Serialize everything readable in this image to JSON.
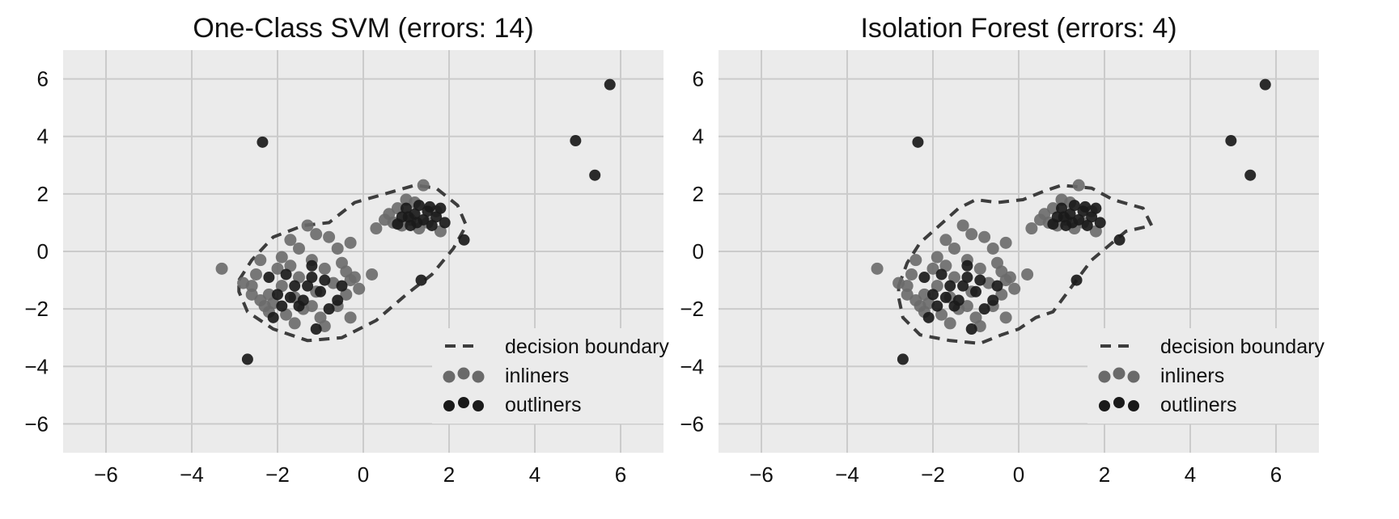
{
  "chart_data": [
    {
      "type": "scatter",
      "title": "One-Class SVM (errors: 14)",
      "xlabel": "",
      "ylabel": "",
      "xlim": [
        -7,
        7
      ],
      "ylim": [
        -7,
        7
      ],
      "x_ticks": [
        -6,
        -4,
        -2,
        0,
        2,
        4,
        6
      ],
      "y_ticks": [
        -6,
        -4,
        -2,
        0,
        2,
        4,
        6
      ],
      "x_tick_labels": [
        "−6",
        "−4",
        "−2",
        "0",
        "2",
        "4",
        "6"
      ],
      "y_tick_labels": [
        "−6",
        "−4",
        "−2",
        "0",
        "2",
        "4",
        "6"
      ],
      "grid": true,
      "legend_position": "lower-right",
      "legend": [
        "decision boundary",
        "inliners",
        "outliners"
      ],
      "colors": {
        "background": "#ebebeb",
        "grid": "#cbcbcb",
        "inliers": "#6a6a6a",
        "outliers": "#1a1a1a",
        "boundary": "#3d3d3d"
      },
      "series": [
        {
          "name": "inliners",
          "points": [
            [
              -3.3,
              -0.6
            ],
            [
              -2.6,
              -1.2
            ],
            [
              -2.4,
              -1.7
            ],
            [
              -2.5,
              -0.8
            ],
            [
              -2.2,
              -1.5
            ],
            [
              -2.0,
              -0.6
            ],
            [
              -1.9,
              -1.2
            ],
            [
              -1.8,
              -2.2
            ],
            [
              -1.7,
              -0.5
            ],
            [
              -1.6,
              -1.6
            ],
            [
              -1.5,
              -0.9
            ],
            [
              -1.4,
              -2.0
            ],
            [
              -1.3,
              0.9
            ],
            [
              -1.2,
              -0.3
            ],
            [
              -1.1,
              -1.4
            ],
            [
              -1.0,
              -2.3
            ],
            [
              -0.9,
              -0.6
            ],
            [
              -0.8,
              0.5
            ],
            [
              -0.7,
              -1.1
            ],
            [
              -0.6,
              -1.9
            ],
            [
              -0.5,
              -0.4
            ],
            [
              -0.4,
              -1.5
            ],
            [
              -0.3,
              -2.3
            ],
            [
              -0.2,
              -0.9
            ],
            [
              -0.1,
              -1.3
            ],
            [
              -0.3,
              0.3
            ],
            [
              -1.7,
              0.4
            ],
            [
              -2.2,
              -2.1
            ],
            [
              -1.9,
              -0.2
            ],
            [
              -1.5,
              0.1
            ],
            [
              -2.1,
              -1.8
            ],
            [
              -1.6,
              -2.5
            ],
            [
              -0.9,
              -2.6
            ],
            [
              -2.4,
              -0.3
            ],
            [
              -2.8,
              -1.1
            ],
            [
              -2.6,
              -1.5
            ],
            [
              0.3,
              0.8
            ],
            [
              0.6,
              1.3
            ],
            [
              0.8,
              1.5
            ],
            [
              1.0,
              1.8
            ],
            [
              1.1,
              1.1
            ],
            [
              1.2,
              1.7
            ],
            [
              1.4,
              2.3
            ],
            [
              1.5,
              1.0
            ],
            [
              0.9,
              0.9
            ],
            [
              1.7,
              1.4
            ],
            [
              0.7,
              1.0
            ],
            [
              1.3,
              0.8
            ],
            [
              0.5,
              1.1
            ],
            [
              1.8,
              0.7
            ],
            [
              0.2,
              -0.8
            ],
            [
              -0.6,
              0.1
            ],
            [
              -1.1,
              0.6
            ],
            [
              -2.3,
              -1.9
            ],
            [
              -1.2,
              -1.9
            ],
            [
              -0.4,
              -0.7
            ],
            [
              -0.3,
              -1.0
            ]
          ]
        },
        {
          "name": "outliners",
          "points": [
            [
              -2.35,
              3.8
            ],
            [
              -2.7,
              -3.75
            ],
            [
              4.95,
              3.85
            ],
            [
              5.4,
              2.65
            ],
            [
              5.75,
              5.8
            ],
            [
              2.35,
              0.4
            ],
            [
              1.35,
              -1.0
            ],
            [
              0.9,
              1.2
            ],
            [
              1.0,
              1.5
            ],
            [
              1.1,
              0.9
            ],
            [
              1.2,
              1.3
            ],
            [
              1.3,
              1.6
            ],
            [
              1.4,
              1.1
            ],
            [
              1.5,
              1.4
            ],
            [
              1.6,
              0.9
            ],
            [
              1.7,
              1.2
            ],
            [
              1.8,
              1.5
            ],
            [
              1.9,
              1.0
            ],
            [
              1.25,
              1.0
            ],
            [
              1.05,
              1.2
            ],
            [
              0.8,
              0.95
            ],
            [
              1.55,
              1.55
            ],
            [
              -2.0,
              -1.5
            ],
            [
              -1.8,
              -0.8
            ],
            [
              -1.6,
              -1.2
            ],
            [
              -1.4,
              -1.7
            ],
            [
              -1.2,
              -0.9
            ],
            [
              -1.0,
              -1.4
            ],
            [
              -0.8,
              -2.0
            ],
            [
              -0.6,
              -1.7
            ],
            [
              -1.1,
              -2.7
            ],
            [
              -1.3,
              -1.2
            ],
            [
              -2.2,
              -0.9
            ],
            [
              -1.5,
              -1.9
            ],
            [
              -0.9,
              -1.0
            ],
            [
              -1.7,
              -1.6
            ],
            [
              -1.9,
              -1.9
            ],
            [
              -1.2,
              -0.5
            ],
            [
              -0.5,
              -1.2
            ],
            [
              -2.1,
              -2.3
            ]
          ]
        }
      ],
      "boundary_points": [
        [
          -2.9,
          -1.0
        ],
        [
          -2.6,
          -0.3
        ],
        [
          -2.1,
          0.5
        ],
        [
          -1.4,
          0.9
        ],
        [
          -0.8,
          1.0
        ],
        [
          -0.2,
          1.7
        ],
        [
          0.5,
          2.0
        ],
        [
          1.2,
          2.3
        ],
        [
          1.7,
          2.2
        ],
        [
          2.2,
          1.6
        ],
        [
          2.4,
          0.9
        ],
        [
          2.1,
          0.1
        ],
        [
          1.6,
          -0.8
        ],
        [
          1.0,
          -1.5
        ],
        [
          0.3,
          -2.4
        ],
        [
          -0.5,
          -3.0
        ],
        [
          -1.3,
          -3.1
        ],
        [
          -2.1,
          -2.7
        ],
        [
          -2.7,
          -2.1
        ],
        [
          -2.9,
          -1.4
        ]
      ]
    },
    {
      "type": "scatter",
      "title": "Isolation Forest (errors: 4)",
      "xlabel": "",
      "ylabel": "",
      "xlim": [
        -7,
        7
      ],
      "ylim": [
        -7,
        7
      ],
      "x_ticks": [
        -6,
        -4,
        -2,
        0,
        2,
        4,
        6
      ],
      "y_ticks": [
        -6,
        -4,
        -2,
        0,
        2,
        4,
        6
      ],
      "x_tick_labels": [
        "−6",
        "−4",
        "−2",
        "0",
        "2",
        "4",
        "6"
      ],
      "y_tick_labels": [
        "−6",
        "−4",
        "−2",
        "0",
        "2",
        "4",
        "6"
      ],
      "grid": true,
      "legend_position": "lower-right",
      "legend": [
        "decision boundary",
        "inliners",
        "outliners"
      ],
      "colors": {
        "background": "#ebebeb",
        "grid": "#cbcbcb",
        "inliers": "#6a6a6a",
        "outliers": "#1a1a1a",
        "boundary": "#3d3d3d"
      },
      "series": [
        {
          "name": "inliners",
          "points": [
            [
              -3.3,
              -0.6
            ],
            [
              -2.6,
              -1.2
            ],
            [
              -2.4,
              -1.7
            ],
            [
              -2.5,
              -0.8
            ],
            [
              -2.2,
              -1.5
            ],
            [
              -2.0,
              -0.6
            ],
            [
              -1.9,
              -1.2
            ],
            [
              -1.8,
              -2.2
            ],
            [
              -1.7,
              -0.5
            ],
            [
              -1.6,
              -1.6
            ],
            [
              -1.5,
              -0.9
            ],
            [
              -1.4,
              -2.0
            ],
            [
              -1.3,
              0.9
            ],
            [
              -1.2,
              -0.3
            ],
            [
              -1.1,
              -1.4
            ],
            [
              -1.0,
              -2.3
            ],
            [
              -0.9,
              -0.6
            ],
            [
              -0.8,
              0.5
            ],
            [
              -0.7,
              -1.1
            ],
            [
              -0.6,
              -1.9
            ],
            [
              -0.5,
              -0.4
            ],
            [
              -0.4,
              -1.5
            ],
            [
              -0.3,
              -2.3
            ],
            [
              -0.2,
              -0.9
            ],
            [
              -0.1,
              -1.3
            ],
            [
              -0.3,
              0.3
            ],
            [
              -1.7,
              0.4
            ],
            [
              -2.2,
              -2.1
            ],
            [
              -1.9,
              -0.2
            ],
            [
              -1.5,
              0.1
            ],
            [
              -2.1,
              -1.8
            ],
            [
              -1.6,
              -2.5
            ],
            [
              -0.9,
              -2.6
            ],
            [
              -2.4,
              -0.3
            ],
            [
              -2.8,
              -1.1
            ],
            [
              -2.6,
              -1.5
            ],
            [
              0.3,
              0.8
            ],
            [
              0.6,
              1.3
            ],
            [
              0.8,
              1.5
            ],
            [
              1.0,
              1.8
            ],
            [
              1.1,
              1.1
            ],
            [
              1.2,
              1.7
            ],
            [
              1.4,
              2.3
            ],
            [
              1.5,
              1.0
            ],
            [
              0.9,
              0.9
            ],
            [
              1.7,
              1.4
            ],
            [
              0.7,
              1.0
            ],
            [
              1.3,
              0.8
            ],
            [
              0.5,
              1.1
            ],
            [
              1.8,
              0.7
            ],
            [
              0.2,
              -0.8
            ],
            [
              -0.6,
              0.1
            ],
            [
              -1.1,
              0.6
            ],
            [
              -2.3,
              -1.9
            ],
            [
              -1.2,
              -1.9
            ],
            [
              -0.4,
              -0.7
            ],
            [
              -0.3,
              -1.0
            ]
          ]
        },
        {
          "name": "outliners",
          "points": [
            [
              -2.35,
              3.8
            ],
            [
              -2.7,
              -3.75
            ],
            [
              4.95,
              3.85
            ],
            [
              5.4,
              2.65
            ],
            [
              5.75,
              5.8
            ],
            [
              2.35,
              0.4
            ],
            [
              1.35,
              -1.0
            ],
            [
              0.9,
              1.2
            ],
            [
              1.0,
              1.5
            ],
            [
              1.1,
              0.9
            ],
            [
              1.2,
              1.3
            ],
            [
              1.3,
              1.6
            ],
            [
              1.4,
              1.1
            ],
            [
              1.5,
              1.4
            ],
            [
              1.6,
              0.9
            ],
            [
              1.7,
              1.2
            ],
            [
              1.8,
              1.5
            ],
            [
              1.9,
              1.0
            ],
            [
              1.25,
              1.0
            ],
            [
              1.05,
              1.2
            ],
            [
              0.8,
              0.95
            ],
            [
              1.55,
              1.55
            ],
            [
              -2.0,
              -1.5
            ],
            [
              -1.8,
              -0.8
            ],
            [
              -1.6,
              -1.2
            ],
            [
              -1.4,
              -1.7
            ],
            [
              -1.2,
              -0.9
            ],
            [
              -1.0,
              -1.4
            ],
            [
              -0.8,
              -2.0
            ],
            [
              -0.6,
              -1.7
            ],
            [
              -1.1,
              -2.7
            ],
            [
              -1.3,
              -1.2
            ],
            [
              -2.2,
              -0.9
            ],
            [
              -1.5,
              -1.9
            ],
            [
              -0.9,
              -1.0
            ],
            [
              -1.7,
              -1.6
            ],
            [
              -1.9,
              -1.9
            ],
            [
              -1.2,
              -0.5
            ],
            [
              -0.5,
              -1.2
            ],
            [
              -2.1,
              -2.3
            ]
          ]
        }
      ],
      "boundary_points": [
        [
          -2.8,
          -1.2
        ],
        [
          -2.6,
          -0.4
        ],
        [
          -2.3,
          0.3
        ],
        [
          -1.7,
          1.1
        ],
        [
          -1.4,
          1.5
        ],
        [
          -1.0,
          1.8
        ],
        [
          -0.5,
          1.7
        ],
        [
          0.1,
          1.8
        ],
        [
          0.6,
          2.1
        ],
        [
          1.0,
          2.3
        ],
        [
          1.7,
          2.2
        ],
        [
          2.2,
          1.8
        ],
        [
          2.9,
          1.5
        ],
        [
          3.1,
          0.9
        ],
        [
          2.5,
          0.7
        ],
        [
          2.1,
          0.2
        ],
        [
          1.7,
          -0.3
        ],
        [
          1.2,
          -1.3
        ],
        [
          0.8,
          -2.1
        ],
        [
          0.4,
          -2.3
        ],
        [
          0.0,
          -2.7
        ],
        [
          -0.4,
          -2.9
        ],
        [
          -0.9,
          -3.2
        ],
        [
          -1.6,
          -3.1
        ],
        [
          -2.3,
          -2.9
        ],
        [
          -2.7,
          -2.3
        ],
        [
          -2.8,
          -1.6
        ]
      ]
    }
  ]
}
